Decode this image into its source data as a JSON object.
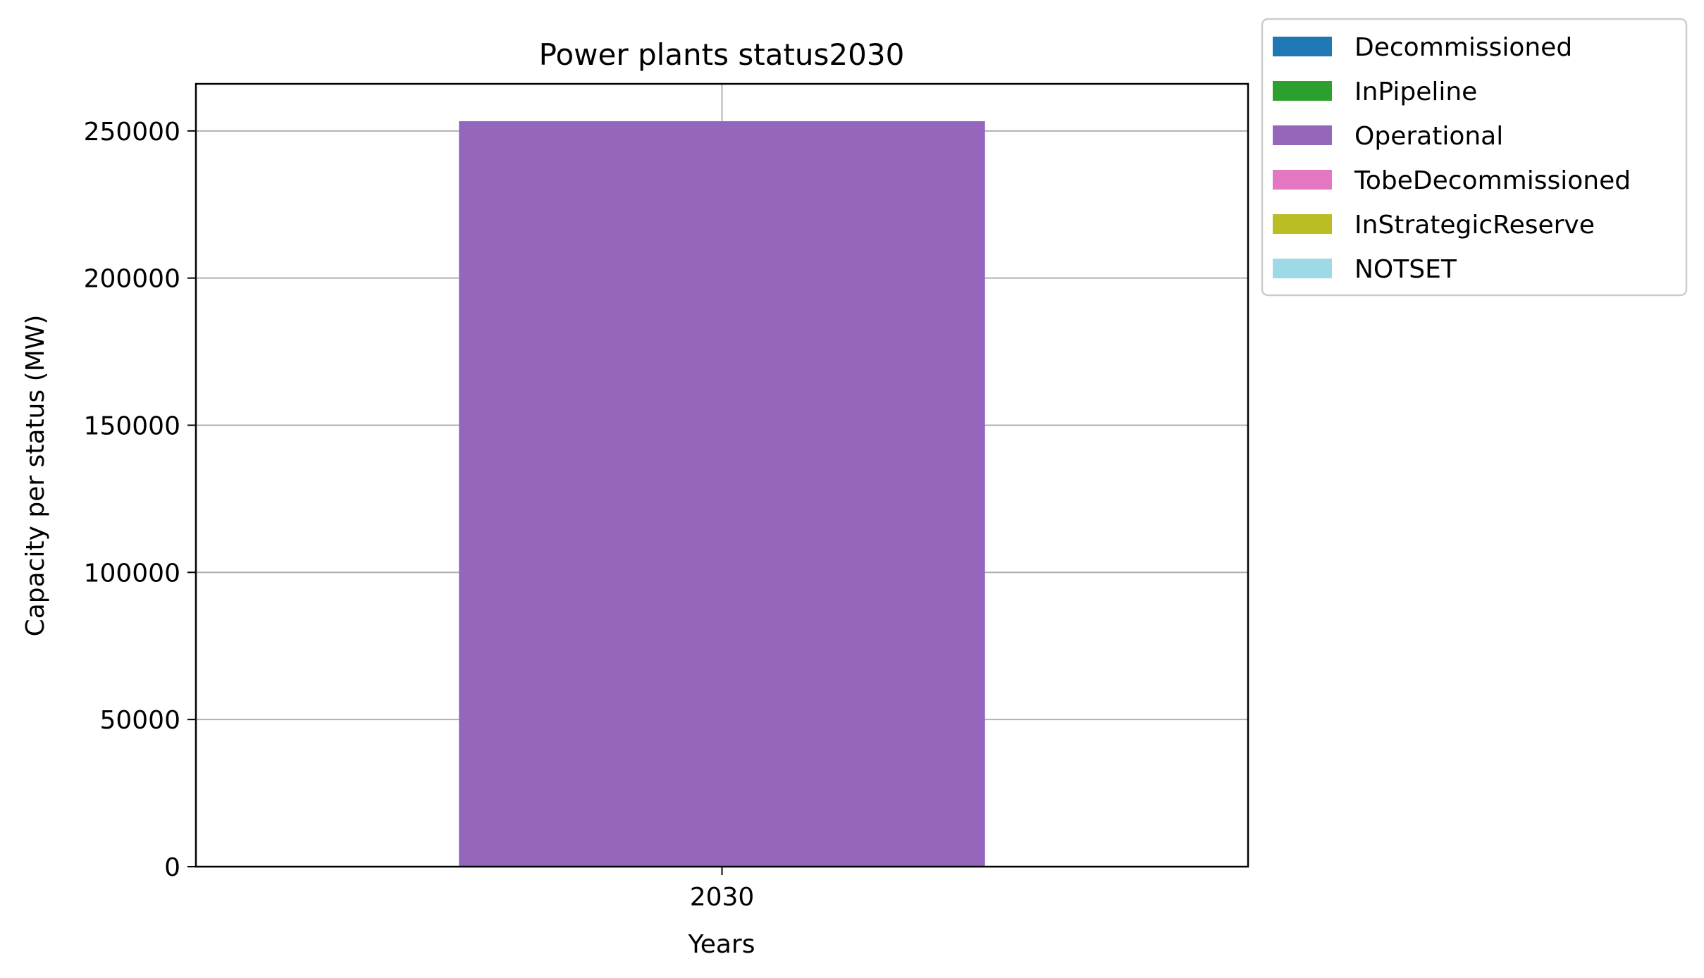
{
  "chart_data": {
    "type": "bar",
    "stacked": true,
    "title": "Power plants status2030",
    "xlabel": "Years",
    "ylabel": "Capacity per status (MW)",
    "categories": [
      "2030"
    ],
    "ylim": [
      0,
      266000
    ],
    "yticks": [
      "0",
      "50000",
      "100000",
      "150000",
      "200000",
      "250000"
    ],
    "grid": true,
    "legend_position": "outside-top-right",
    "series": [
      {
        "name": "Decommissioned",
        "color": "#1f77b4",
        "values": [
          0
        ]
      },
      {
        "name": "InPipeline",
        "color": "#2ca02c",
        "values": [
          0
        ]
      },
      {
        "name": "Operational",
        "color": "#9467bd",
        "values": [
          253300
        ]
      },
      {
        "name": "TobeDecommissioned",
        "color": "#e377c2",
        "values": [
          0
        ]
      },
      {
        "name": "InStrategicReserve",
        "color": "#bcbd22",
        "values": [
          0
        ]
      },
      {
        "name": "NOTSET",
        "color": "#9edae5",
        "values": [
          0
        ]
      }
    ]
  }
}
